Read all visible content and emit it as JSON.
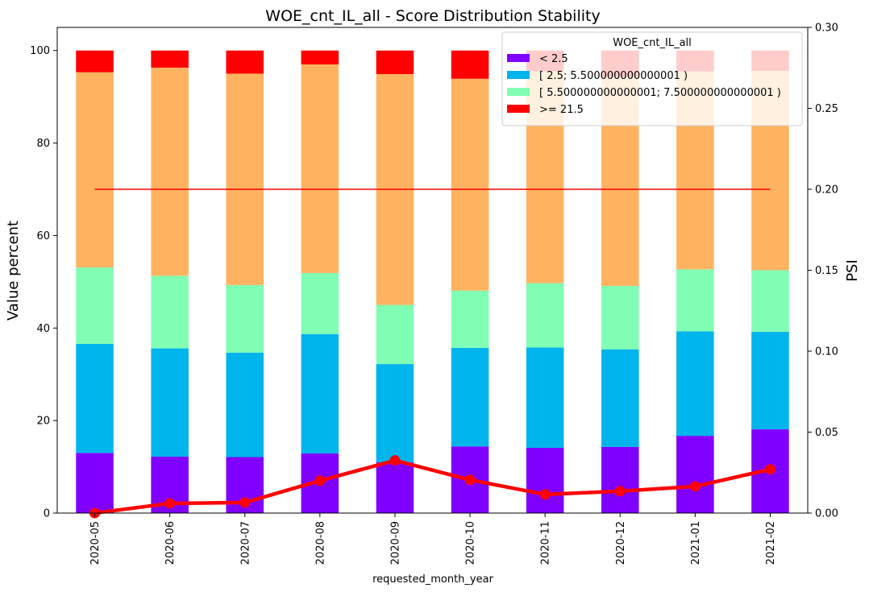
{
  "chart_data": {
    "type": "bar",
    "stacked": true,
    "title": "WOE_cnt_IL_all  - Score Distribution Stability",
    "xlabel": "requested_month_year",
    "ylabel": "Value percent",
    "y2label": "PSI",
    "ylim": [
      0,
      105
    ],
    "y2lim": [
      0,
      0.3
    ],
    "yticks": [
      0,
      20,
      40,
      60,
      80,
      100
    ],
    "y2ticks": [
      "0.00",
      "0.05",
      "0.10",
      "0.15",
      "0.20",
      "0.25",
      "0.30"
    ],
    "grid": false,
    "legend_placement": "top-right",
    "legend_title": "WOE_cnt_IL_all",
    "categories": [
      "2020-05",
      "2020-06",
      "2020-07",
      "2020-08",
      "2020-09",
      "2020-10",
      "2020-11",
      "2020-12",
      "2021-01",
      "2021-02"
    ],
    "series": [
      {
        "name": "< 2.5",
        "color": "#8000ff",
        "values": [
          13.0,
          12.2,
          12.1,
          12.9,
          11.0,
          14.4,
          14.1,
          14.3,
          16.7,
          18.1
        ]
      },
      {
        "name": "[ 2.5; 5.500000000000001 )",
        "color": "#00b4ec",
        "values": [
          23.6,
          23.4,
          22.6,
          25.8,
          21.2,
          21.3,
          21.7,
          21.1,
          22.6,
          21.1
        ]
      },
      {
        "name": "[ 5.500000000000001; 7.500000000000001 )",
        "color": "#80ffb4",
        "values": [
          16.5,
          15.7,
          14.6,
          13.2,
          12.8,
          12.4,
          13.9,
          13.7,
          13.4,
          13.3
        ]
      },
      {
        "name": "",
        "color": "#ffb360",
        "values": [
          42.2,
          45.0,
          45.7,
          45.1,
          49.9,
          45.8,
          45.8,
          45.2,
          42.8,
          43.1
        ]
      },
      {
        "name": ">= 21.5",
        "color": "#ff0000",
        "values": [
          4.7,
          3.7,
          5.0,
          3.0,
          5.1,
          6.1,
          4.5,
          5.7,
          4.5,
          4.4
        ]
      }
    ],
    "psi_line": {
      "color": "#ff0000",
      "values": [
        0.0,
        0.006,
        0.0065,
        0.02,
        0.0325,
        0.0205,
        0.0115,
        0.0135,
        0.0165,
        0.027
      ]
    },
    "threshold_line": {
      "color": "#ff0000",
      "value": 0.2
    }
  }
}
